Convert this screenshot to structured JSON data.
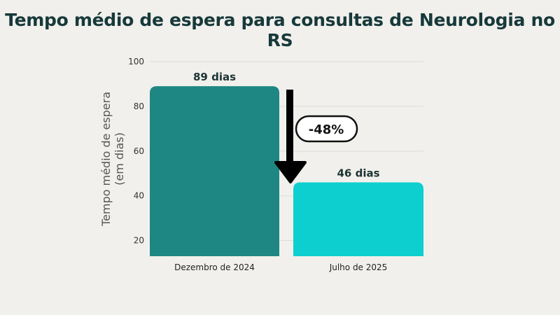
{
  "chart_data": {
    "type": "bar",
    "title": "Tempo médio de espera para consultas de Neurologia no RS",
    "categories": [
      "Dezembro de 2024",
      "Julho de 2025"
    ],
    "values": [
      89,
      46
    ],
    "data_labels": [
      "89 dias",
      "46 dias"
    ],
    "colors": [
      "#1e8783",
      "#0ecfcf"
    ],
    "ylabel": [
      "Tempo médio de espera",
      "(em dias)"
    ],
    "xlabel": "",
    "yticks": [
      20,
      40,
      60,
      80,
      100
    ],
    "ylim": [
      13,
      100
    ],
    "grid": true,
    "annotation": {
      "text": "-48%",
      "type": "down-arrow"
    }
  }
}
